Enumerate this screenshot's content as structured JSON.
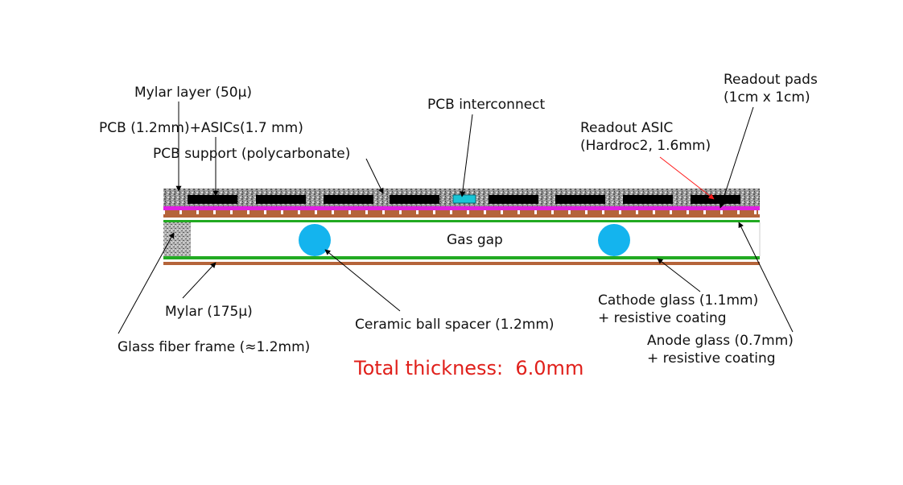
{
  "labels": {
    "mylar_layer": "Mylar layer (50μ)",
    "pcb_asics": "PCB (1.2mm)+ASICs(1.7 mm)",
    "pcb_support": "PCB support (polycarbonate)",
    "pcb_interconnect": "PCB interconnect",
    "readout_pads_line1": "Readout pads",
    "readout_pads_line2": "(1cm x 1cm)",
    "readout_asic_line1": "Readout ASIC",
    "readout_asic_line2": "(Hardroc2, 1.6mm)",
    "gas_gap": "Gas gap",
    "mylar_175": "Mylar (175μ)",
    "glass_fiber_frame": "Glass fiber frame (≈1.2mm)",
    "ceramic_ball_spacer": "Ceramic ball spacer (1.2mm)",
    "cathode_line1": "Cathode glass (1.1mm)",
    "cathode_line2": "+ resistive coating",
    "anode_line1": "Anode glass (0.7mm)",
    "anode_line2": "+ resistive coating",
    "total_thickness": "Total thickness:  6.0mm"
  },
  "colors": {
    "text": "#111111",
    "total_text": "#e0201b",
    "pcb_texture": "#8a8a8a",
    "asic_block": "#000000",
    "pcb_layer": "#e020e0",
    "copper": "#b5643a",
    "glass_green": "#22aa22",
    "ceramic_ball": "#14b4ee",
    "interconnect": "#19c5d6",
    "red_arrow": "#ff1a1a"
  }
}
